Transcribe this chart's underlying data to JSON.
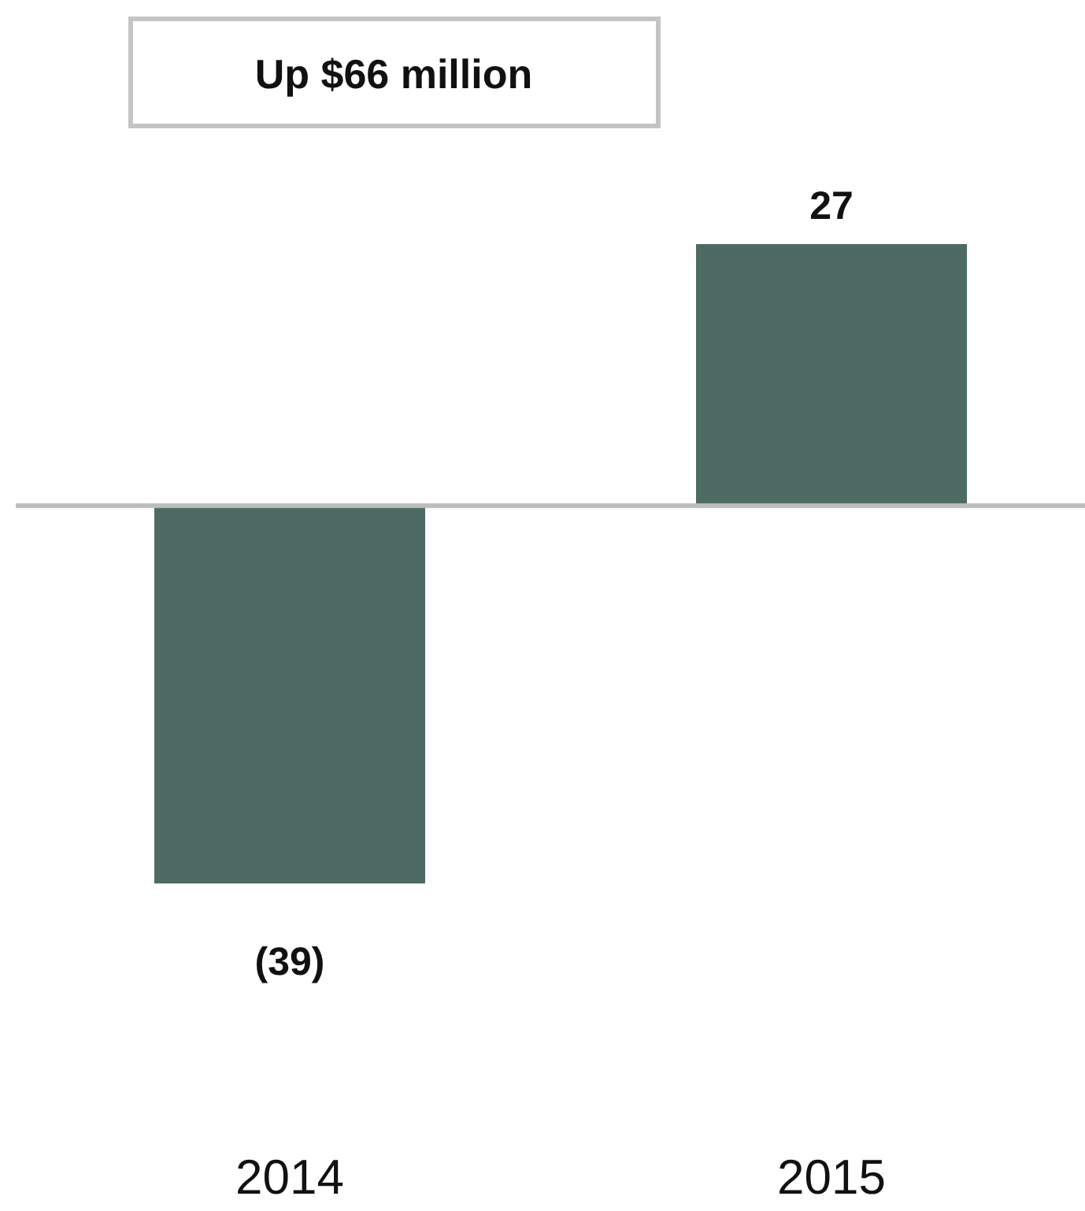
{
  "chart_data": {
    "type": "bar",
    "categories": [
      "2014",
      "2015"
    ],
    "values": [
      -39,
      27
    ],
    "value_labels": [
      "(39)",
      "27"
    ],
    "color": "#4d6a63",
    "annotations": [
      "Up $66 million"
    ]
  }
}
